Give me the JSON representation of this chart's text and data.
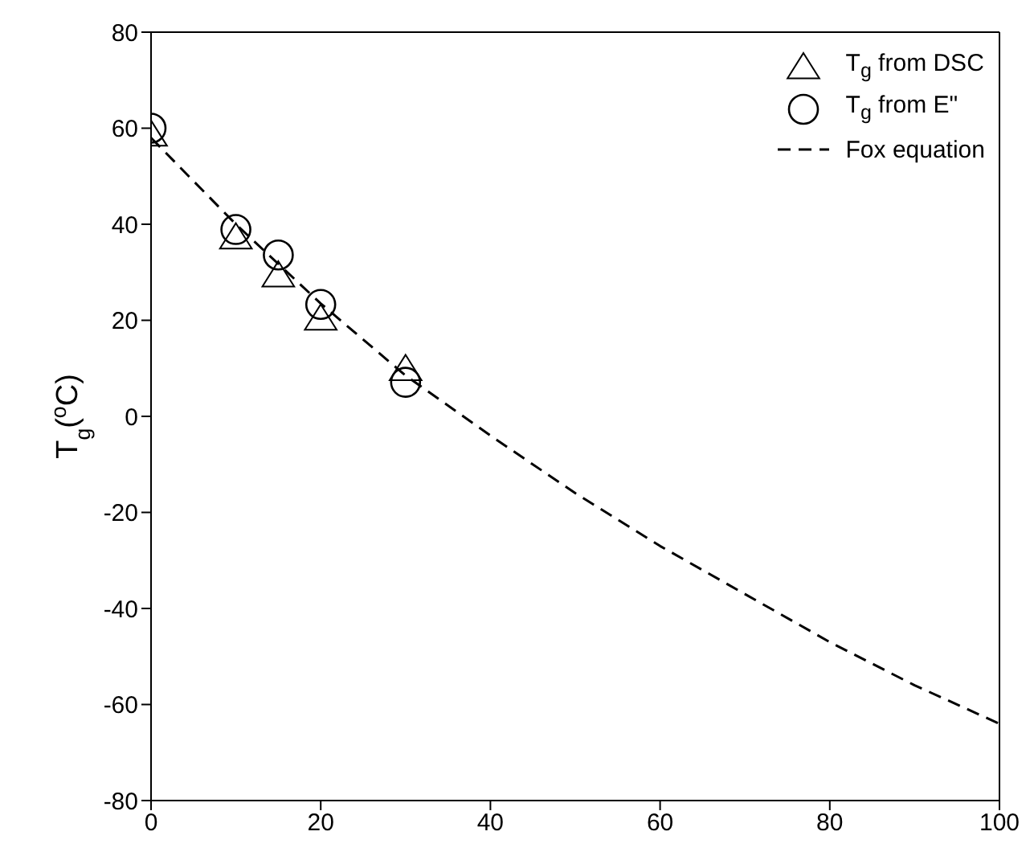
{
  "chart_data": {
    "type": "scatter",
    "ylabel": "T$_{g}$($^{o}$C)",
    "xlim": [
      0,
      100
    ],
    "xticks": [
      0,
      20,
      40,
      60,
      80,
      100
    ],
    "ylim": [
      -80,
      80
    ],
    "yticks": [
      -80,
      -60,
      -40,
      -20,
      0,
      20,
      40,
      60,
      80
    ],
    "legend": "top right",
    "series": [
      {
        "name": "T$_{g}$ from DSC",
        "marker": "triangle",
        "color": "#000000",
        "x": [
          0,
          10,
          15,
          20,
          30
        ],
        "values": [
          58.6,
          37.2,
          29.3,
          20.3,
          9.8
        ]
      },
      {
        "name": "T$_{g}$ from E\"",
        "marker": "circle",
        "color": "#000000",
        "x": [
          0,
          10,
          15,
          20,
          30
        ],
        "values": [
          60,
          38.9,
          33.6,
          23.3,
          7.1
        ]
      },
      {
        "name": "Fox equation",
        "type": "line",
        "marker": "none",
        "line_style": "dashed",
        "color": "#000000",
        "x": [
          0,
          10,
          20,
          30,
          40,
          50,
          60,
          70,
          80,
          90,
          100
        ],
        "values": [
          58,
          40,
          23.5,
          8.5,
          -4,
          -16,
          -27,
          -37,
          -47,
          -56,
          -64
        ]
      }
    ]
  }
}
